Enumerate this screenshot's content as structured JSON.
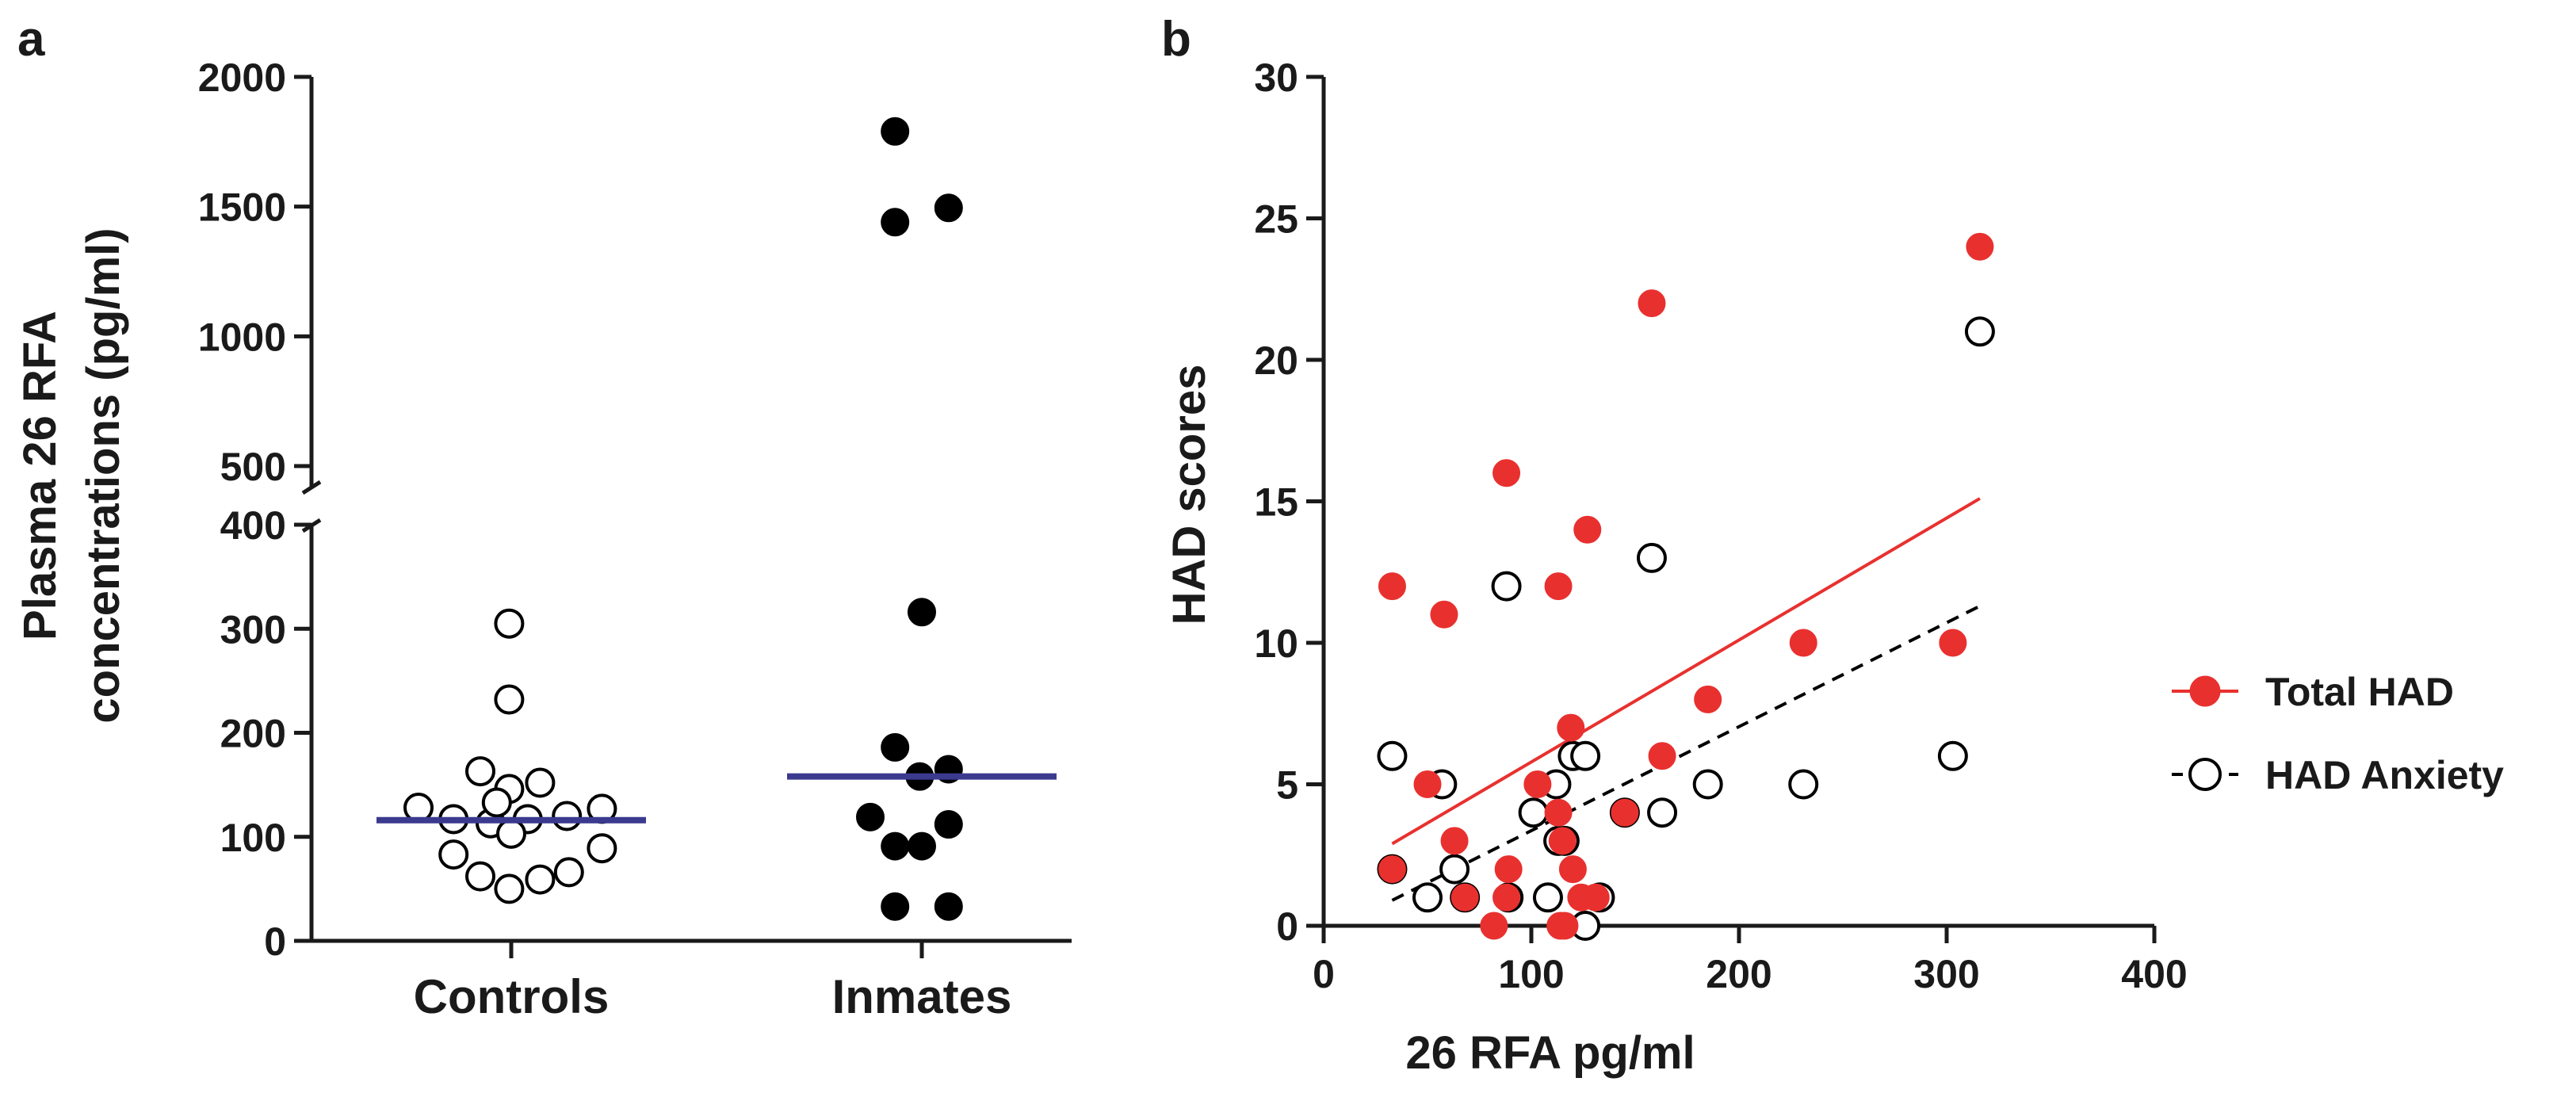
{
  "panel_a": {
    "letter": "a",
    "chart_data": {
      "type": "scatter",
      "ylabel_line1": "Plasma 26 RFA",
      "ylabel_line2": "concentrations (pg/ml)",
      "xlabel": "",
      "categories": [
        "Controls",
        "Inmates"
      ],
      "y_ticks_lower": [
        "0",
        "100",
        "200",
        "300",
        "400"
      ],
      "y_ticks_upper": [
        "500",
        "1000",
        "1500",
        "2000"
      ],
      "ylim_lower": [
        0,
        400
      ],
      "ylim_upper": [
        500,
        2000
      ],
      "broken_axis": true,
      "series": [
        {
          "name": "Controls",
          "marker": "open-circle",
          "color": "#000000",
          "median": 116,
          "points": [
            {
              "offset": -0.45,
              "y": 128
            },
            {
              "offset": -0.28,
              "y": 117
            },
            {
              "offset": -0.1,
              "y": 113
            },
            {
              "offset": 0.08,
              "y": 117
            },
            {
              "offset": 0.27,
              "y": 120
            },
            {
              "offset": 0.44,
              "y": 127
            },
            {
              "offset": -0.28,
              "y": 83
            },
            {
              "offset": 0.0,
              "y": 103
            },
            {
              "offset": 0.44,
              "y": 89
            },
            {
              "offset": -0.15,
              "y": 62
            },
            {
              "offset": -0.01,
              "y": 50
            },
            {
              "offset": 0.14,
              "y": 59
            },
            {
              "offset": 0.28,
              "y": 66
            },
            {
              "offset": -0.15,
              "y": 163
            },
            {
              "offset": -0.01,
              "y": 146
            },
            {
              "offset": 0.14,
              "y": 152
            },
            {
              "offset": -0.07,
              "y": 133
            },
            {
              "offset": -0.01,
              "y": 232
            },
            {
              "offset": -0.01,
              "y": 305
            }
          ]
        },
        {
          "name": "Inmates",
          "marker": "filled-circle",
          "color": "#000000",
          "median": 158,
          "points": [
            {
              "offset": -0.13,
              "y": 1790
            },
            {
              "offset": -0.13,
              "y": 1440
            },
            {
              "offset": 0.13,
              "y": 1495
            },
            {
              "offset": 0.0,
              "y": 316
            },
            {
              "offset": -0.13,
              "y": 186
            },
            {
              "offset": -0.01,
              "y": 158
            },
            {
              "offset": 0.13,
              "y": 165
            },
            {
              "offset": -0.25,
              "y": 119
            },
            {
              "offset": 0.13,
              "y": 112
            },
            {
              "offset": -0.13,
              "y": 91
            },
            {
              "offset": 0.0,
              "y": 91
            },
            {
              "offset": -0.13,
              "y": 33
            },
            {
              "offset": 0.13,
              "y": 33
            }
          ]
        }
      ]
    }
  },
  "panel_b": {
    "letter": "b",
    "chart_data": {
      "type": "scatter",
      "xlabel": "26 RFA pg/ml",
      "ylabel": "HAD scores",
      "xlim": [
        0,
        400
      ],
      "ylim": [
        0,
        30
      ],
      "x_ticks": [
        "0",
        "100",
        "200",
        "300",
        "400"
      ],
      "y_ticks": [
        "0",
        "5",
        "10",
        "15",
        "20",
        "25",
        "30"
      ],
      "series": [
        {
          "name": "Total HAD",
          "marker": "filled-circle",
          "color": "#e8312f",
          "line_style": "solid",
          "fit": {
            "x0": 33,
            "y0": 2.9,
            "x1": 316,
            "y1": 15.1
          },
          "points": [
            [
              33,
              2
            ],
            [
              33,
              12
            ],
            [
              50,
              5
            ],
            [
              58,
              11
            ],
            [
              63,
              3
            ],
            [
              68,
              1
            ],
            [
              82,
              0
            ],
            [
              88,
              16
            ],
            [
              88,
              1
            ],
            [
              89,
              2
            ],
            [
              103,
              5
            ],
            [
              113,
              12
            ],
            [
              113,
              4
            ],
            [
              114,
              0
            ],
            [
              115,
              3
            ],
            [
              116,
              0
            ],
            [
              119,
              7
            ],
            [
              120,
              2
            ],
            [
              124,
              1
            ],
            [
              127,
              14
            ],
            [
              131,
              1
            ],
            [
              145,
              4
            ],
            [
              158,
              22
            ],
            [
              163,
              6
            ],
            [
              185,
              8
            ],
            [
              231,
              10
            ],
            [
              303,
              10
            ],
            [
              316,
              24
            ]
          ]
        },
        {
          "name": "HAD Anxiety",
          "marker": "open-circle",
          "color": "#000000",
          "line_style": "dashed",
          "fit": {
            "x0": 33,
            "y0": 0.9,
            "x1": 316,
            "y1": 11.3
          },
          "points": [
            [
              33,
              2
            ],
            [
              33,
              6
            ],
            [
              50,
              1
            ],
            [
              57,
              5
            ],
            [
              63,
              2
            ],
            [
              68,
              1
            ],
            [
              88,
              12
            ],
            [
              89,
              1
            ],
            [
              101,
              4
            ],
            [
              108,
              1
            ],
            [
              112,
              5
            ],
            [
              113,
              3
            ],
            [
              116,
              3
            ],
            [
              120,
              6
            ],
            [
              126,
              0
            ],
            [
              126,
              6
            ],
            [
              133,
              1
            ],
            [
              145,
              4
            ],
            [
              158,
              13
            ],
            [
              163,
              4
            ],
            [
              185,
              5
            ],
            [
              231,
              5
            ],
            [
              303,
              6
            ],
            [
              316,
              21
            ]
          ]
        }
      ],
      "legend": {
        "placement": "right",
        "entries": [
          "Total HAD",
          "HAD Anxiety"
        ]
      }
    }
  }
}
